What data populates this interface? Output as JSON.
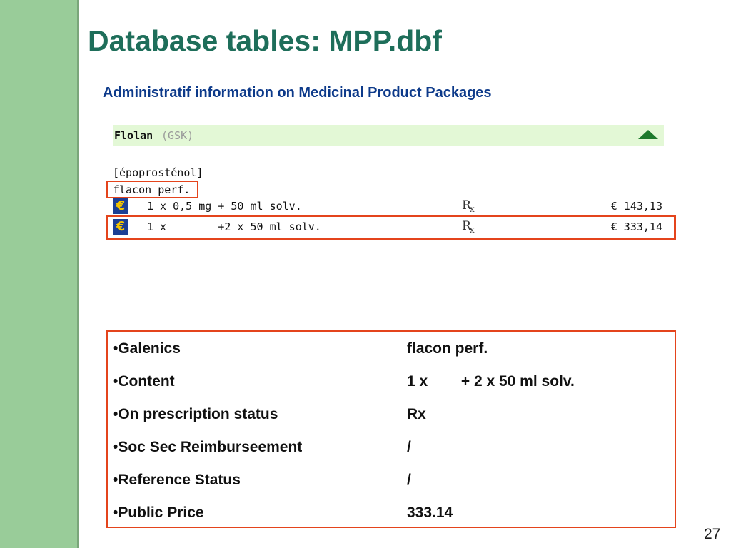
{
  "slide": {
    "title": "Database tables: MPP.dbf",
    "subtitle": "Administratif information on Medicinal Product Packages",
    "number": "27"
  },
  "product": {
    "name": "Flolan",
    "lab": "(GSK)",
    "inn": "[époprosténol]",
    "galenic": "flacon perf.",
    "packages": [
      {
        "content": "1 x 0,5 mg + 50 ml solv.",
        "rx": "R",
        "rx_sub": "x",
        "price": "€ 143,13"
      },
      {
        "content": "1 x        +2 x 50 ml solv.",
        "rx": "R",
        "rx_sub": "x",
        "price": "€ 333,14"
      }
    ]
  },
  "info": [
    {
      "label": "•Galenics",
      "value": "flacon perf."
    },
    {
      "label": "•Content",
      "value": "1 x        + 2 x 50 ml solv."
    },
    {
      "label": "•On prescription status",
      "value": "Rx"
    },
    {
      "label": "•Soc Sec Reimburseement",
      "value": "/"
    },
    {
      "label": "•Reference Status",
      "value": "/"
    },
    {
      "label": "•Public Price",
      "value": "333.14"
    }
  ],
  "colors": {
    "sidebar": "#99cc99",
    "title": "#1e6e5a",
    "subtitle": "#0d3a8a",
    "highlight": "#e4441c",
    "product_bar": "#e3f8d6"
  },
  "icons": {
    "collapse": "triangle-up-icon",
    "euro": "euro-icon",
    "prescription": "rx-icon"
  }
}
